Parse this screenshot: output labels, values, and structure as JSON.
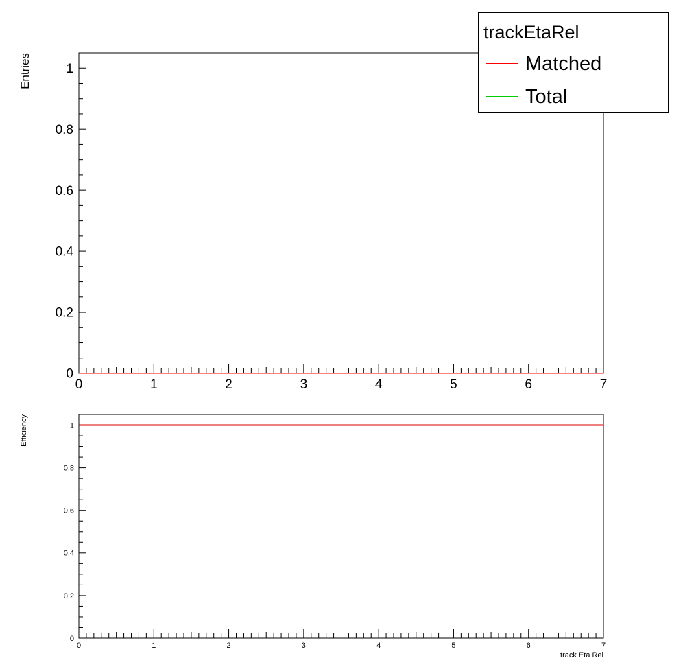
{
  "legend": {
    "header": "trackEtaRel",
    "items": [
      {
        "label": "Matched",
        "color": "#ff0000"
      },
      {
        "label": "Total",
        "color": "#00cc00"
      }
    ]
  },
  "chart_data": [
    {
      "type": "line",
      "title": "",
      "xlabel": "",
      "ylabel": "Entries",
      "xlim": [
        0,
        7
      ],
      "ylim": [
        0,
        1.05
      ],
      "x_ticks": [
        "0",
        "1",
        "2",
        "3",
        "4",
        "5",
        "6",
        "7"
      ],
      "y_ticks": [
        "0",
        "0.2",
        "0.4",
        "0.6",
        "0.8",
        "1"
      ],
      "grid": false,
      "legend_position": "top-right",
      "series": [
        {
          "name": "Matched",
          "color": "#ff0000",
          "x": [
            0,
            7
          ],
          "y": [
            0,
            0
          ]
        },
        {
          "name": "Total",
          "color": "#00cc00",
          "x": [
            0,
            7
          ],
          "y": [
            0,
            0
          ]
        }
      ]
    },
    {
      "type": "line",
      "title": "",
      "xlabel": "track Eta Rel",
      "ylabel": "Efficiency",
      "xlim": [
        0,
        7
      ],
      "ylim": [
        0,
        1.05
      ],
      "x_ticks": [
        "0",
        "1",
        "2",
        "3",
        "4",
        "5",
        "6",
        "7"
      ],
      "y_ticks": [
        "0",
        "0.2",
        "0.4",
        "0.6",
        "0.8",
        "1"
      ],
      "grid": false,
      "series": [
        {
          "color": "#dd0000",
          "x": [
            0,
            7
          ],
          "y": [
            1,
            1
          ]
        }
      ]
    }
  ]
}
